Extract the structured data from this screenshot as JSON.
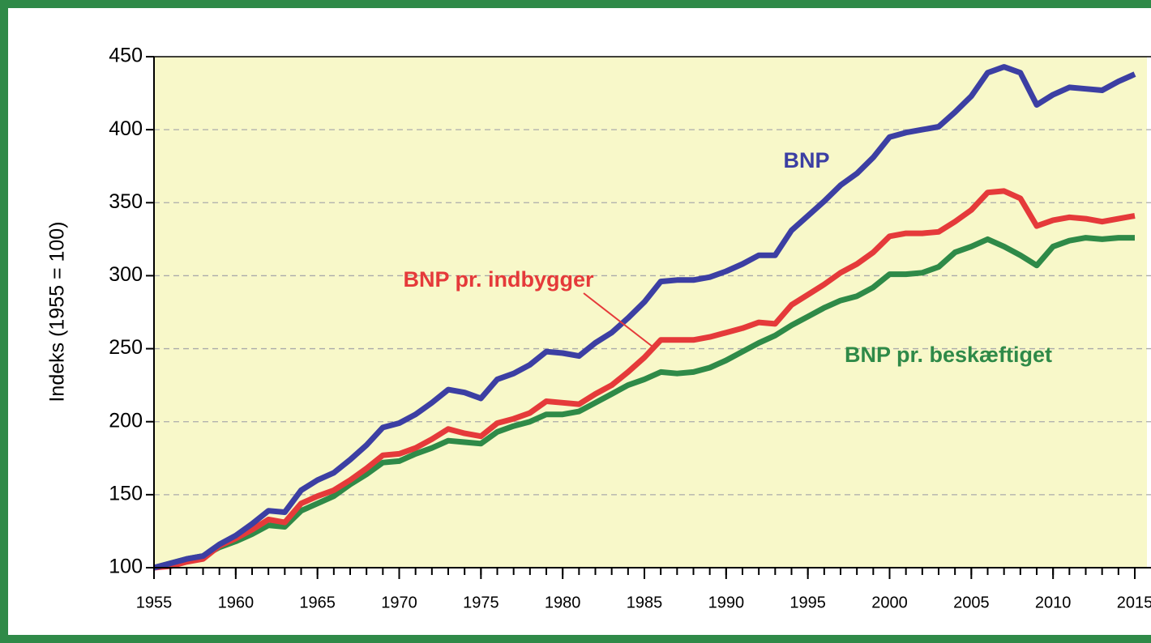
{
  "chart_data": {
    "type": "line",
    "y_label": "Indeks (1955 = 100)",
    "x": [
      1955,
      1956,
      1957,
      1958,
      1959,
      1960,
      1961,
      1962,
      1963,
      1964,
      1965,
      1966,
      1967,
      1968,
      1969,
      1970,
      1971,
      1972,
      1973,
      1974,
      1975,
      1976,
      1977,
      1978,
      1979,
      1980,
      1981,
      1982,
      1983,
      1984,
      1985,
      1986,
      1987,
      1988,
      1989,
      1990,
      1991,
      1992,
      1993,
      1994,
      1995,
      1996,
      1997,
      1998,
      1999,
      2000,
      2001,
      2002,
      2003,
      2004,
      2005,
      2006,
      2007,
      2008,
      2009,
      2010,
      2011,
      2012,
      2013,
      2014,
      2015
    ],
    "series": [
      {
        "name": "BNP",
        "color": "#3c3fa3",
        "values": [
          100,
          103,
          106,
          108,
          116,
          122,
          130,
          139,
          138,
          153,
          160,
          165,
          174,
          184,
          196,
          199,
          205,
          213,
          222,
          220,
          216,
          229,
          233,
          239,
          248,
          247,
          245,
          254,
          261,
          271,
          282,
          296,
          297,
          297,
          299,
          303,
          308,
          314,
          314,
          331,
          341,
          351,
          362,
          370,
          381,
          395,
          398,
          400,
          402,
          412,
          423,
          439,
          443,
          439,
          417,
          424,
          429,
          428,
          427,
          433,
          438
        ]
      },
      {
        "name": "BNP pr. indbygger",
        "color": "#e53a3a",
        "values": [
          100,
          101,
          104,
          106,
          115,
          120,
          126,
          133,
          131,
          144,
          149,
          153,
          160,
          168,
          177,
          178,
          182,
          188,
          195,
          192,
          190,
          199,
          202,
          206,
          214,
          213,
          212,
          219,
          225,
          234,
          244,
          256,
          256,
          256,
          258,
          261,
          264,
          268,
          267,
          280,
          287,
          294,
          302,
          308,
          316,
          327,
          329,
          329,
          330,
          337,
          345,
          357,
          358,
          353,
          334,
          338,
          340,
          339,
          337,
          339,
          341
        ]
      },
      {
        "name": "BNP pr. beskæftiget",
        "color": "#2f8a48",
        "values": [
          100,
          103,
          106,
          108,
          114,
          118,
          123,
          129,
          128,
          139,
          144,
          149,
          157,
          164,
          172,
          173,
          178,
          182,
          187,
          186,
          185,
          193,
          197,
          200,
          205,
          205,
          207,
          213,
          219,
          225,
          229,
          234,
          233,
          234,
          237,
          242,
          248,
          254,
          259,
          266,
          272,
          278,
          283,
          286,
          292,
          301,
          301,
          302,
          306,
          316,
          320,
          325,
          320,
          314,
          307,
          320,
          324,
          326,
          325,
          326,
          326
        ]
      }
    ],
    "xlim": [
      1955,
      2015
    ],
    "xticks": [
      1955,
      1960,
      1965,
      1970,
      1975,
      1980,
      1985,
      1990,
      1995,
      2000,
      2005,
      2010,
      2015
    ],
    "ylim": [
      100,
      450
    ],
    "yticks": [
      100,
      150,
      200,
      250,
      300,
      350,
      400,
      450
    ],
    "grid": true
  }
}
